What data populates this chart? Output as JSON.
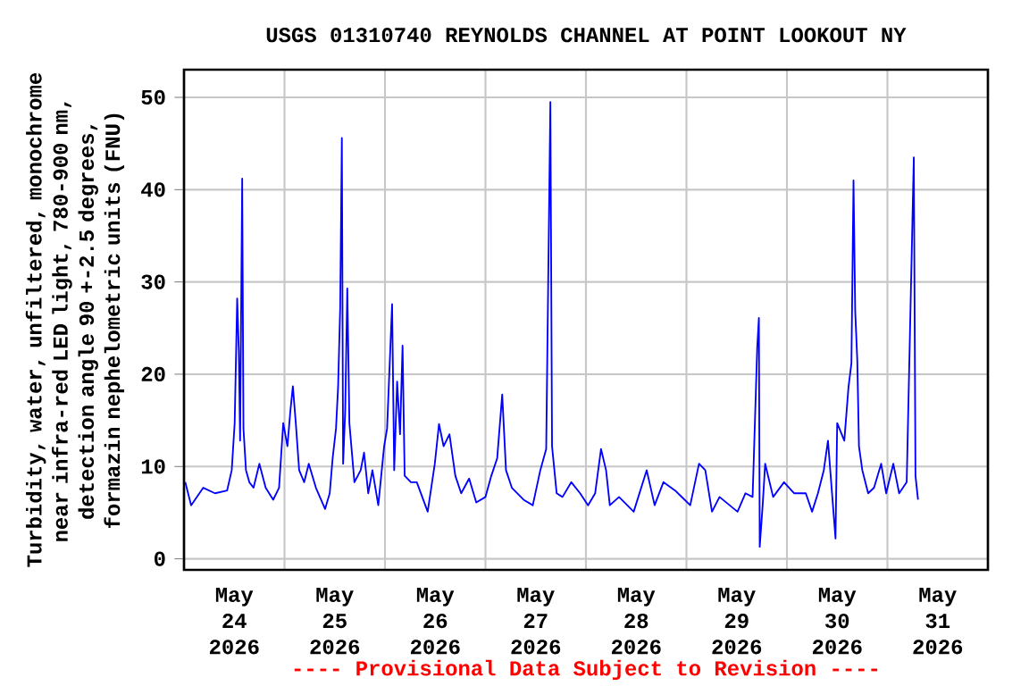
{
  "chart_data": {
    "type": "line",
    "title": "USGS 01310740 REYNOLDS CHANNEL AT POINT LOOKOUT NY",
    "ylabel": "Turbidity, water, unfiltered, monochrome near infra-red LED light, 780-900 nm, detection angle 90 +-2.5 degrees, formazin nephelometric units (FNU)",
    "annotations": [
      "---- Provisional Data Subject to Revision ----"
    ],
    "xlim": [
      "2026-05-24T00:00",
      "2026-06-01T00:00"
    ],
    "xticks": [
      {
        "value": "2026-05-24T12:00",
        "label": "May 24 2026"
      },
      {
        "value": "2026-05-25T00:00",
        "label": null
      },
      {
        "value": "2026-05-25T12:00",
        "label": "May 25 2026"
      },
      {
        "value": "2026-05-26T00:00",
        "label": null
      },
      {
        "value": "2026-05-26T12:00",
        "label": "May 26 2026"
      },
      {
        "value": "2026-05-27T00:00",
        "label": null
      },
      {
        "value": "2026-05-27T12:00",
        "label": "May 27 2026"
      },
      {
        "value": "2026-05-28T00:00",
        "label": null
      },
      {
        "value": "2026-05-28T12:00",
        "label": "May 28 2026"
      },
      {
        "value": "2026-05-29T00:00",
        "label": null
      },
      {
        "value": "2026-05-29T12:00",
        "label": "May 29 2026"
      },
      {
        "value": "2026-05-30T00:00",
        "label": null
      },
      {
        "value": "2026-05-30T12:00",
        "label": "May 30 2026"
      },
      {
        "value": "2026-05-31T00:00",
        "label": null
      },
      {
        "value": "2026-05-31T12:00",
        "label": "May 31 2026"
      }
    ],
    "ylim": [
      -1.2,
      53
    ],
    "yticks": [
      0,
      10,
      20,
      30,
      40,
      50
    ],
    "grid": true,
    "x": [
      "2026-05-24T00:18",
      "2026-05-24T01:42",
      "2026-05-24T04:36",
      "2026-05-24T07:24",
      "2026-05-24T10:18",
      "2026-05-24T11:24",
      "2026-05-24T12:06",
      "2026-05-24T12:42",
      "2026-05-24T13:06",
      "2026-05-24T13:24",
      "2026-05-24T13:54",
      "2026-05-24T14:12",
      "2026-05-24T14:48",
      "2026-05-24T15:36",
      "2026-05-24T16:36",
      "2026-05-24T18:00",
      "2026-05-24T19:30",
      "2026-05-24T21:18",
      "2026-05-24T22:42",
      "2026-05-24T23:42",
      "2026-05-25T00:42",
      "2026-05-25T01:24",
      "2026-05-25T02:00",
      "2026-05-25T02:42",
      "2026-05-25T03:30",
      "2026-05-25T04:42",
      "2026-05-25T05:48",
      "2026-05-25T07:30",
      "2026-05-25T09:42",
      "2026-05-25T10:48",
      "2026-05-25T11:30",
      "2026-05-25T12:18",
      "2026-05-25T12:48",
      "2026-05-25T13:18",
      "2026-05-25T13:42",
      "2026-05-25T14:00",
      "2026-05-25T14:30",
      "2026-05-25T15:00",
      "2026-05-25T15:30",
      "2026-05-25T16:42",
      "2026-05-25T18:12",
      "2026-05-25T19:00",
      "2026-05-25T20:00",
      "2026-05-25T21:00",
      "2026-05-25T22:24",
      "2026-05-25T23:48",
      "2026-05-26T00:30",
      "2026-05-26T01:42",
      "2026-05-26T02:12",
      "2026-05-26T02:54",
      "2026-05-26T03:36",
      "2026-05-26T04:12",
      "2026-05-26T04:42",
      "2026-05-26T06:12",
      "2026-05-26T07:36",
      "2026-05-26T10:12",
      "2026-05-26T11:54",
      "2026-05-26T12:54",
      "2026-05-26T14:00",
      "2026-05-26T15:24",
      "2026-05-26T16:48",
      "2026-05-26T18:12",
      "2026-05-26T20:06",
      "2026-05-26T21:48",
      "2026-05-27T00:00",
      "2026-05-27T01:24",
      "2026-05-27T02:48",
      "2026-05-27T04:00",
      "2026-05-27T04:54",
      "2026-05-27T06:18",
      "2026-05-27T09:06",
      "2026-05-27T11:18",
      "2026-05-27T13:06",
      "2026-05-27T14:30",
      "2026-05-27T15:30",
      "2026-05-27T15:54",
      "2026-05-27T17:00",
      "2026-05-27T18:24",
      "2026-05-27T20:30",
      "2026-05-27T22:36",
      "2026-05-28T00:30",
      "2026-05-28T02:12",
      "2026-05-28T03:36",
      "2026-05-28T04:48",
      "2026-05-28T05:42",
      "2026-05-28T07:54",
      "2026-05-28T11:24",
      "2026-05-28T14:30",
      "2026-05-28T16:24",
      "2026-05-28T18:30",
      "2026-05-28T21:18",
      "2026-05-29T00:54",
      "2026-05-29T03:00",
      "2026-05-29T04:30",
      "2026-05-29T06:06",
      "2026-05-29T07:54",
      "2026-05-29T12:12",
      "2026-05-29T14:06",
      "2026-05-29T15:48",
      "2026-05-29T16:54",
      "2026-05-29T17:18",
      "2026-05-29T17:30",
      "2026-05-29T18:12",
      "2026-05-29T18:48",
      "2026-05-29T20:42",
      "2026-05-29T23:18",
      "2026-05-30T01:42",
      "2026-05-30T04:30",
      "2026-05-30T06:00",
      "2026-05-30T07:24",
      "2026-05-30T08:48",
      "2026-05-30T09:48",
      "2026-05-30T11:36",
      "2026-05-30T12:00",
      "2026-05-30T13:42",
      "2026-05-30T14:42",
      "2026-05-30T15:24",
      "2026-05-30T15:54",
      "2026-05-30T16:18",
      "2026-05-30T16:48",
      "2026-05-30T17:12",
      "2026-05-30T18:00",
      "2026-05-30T19:24",
      "2026-05-30T20:48",
      "2026-05-30T22:30",
      "2026-05-30T23:42",
      "2026-05-31T01:24",
      "2026-05-31T02:48",
      "2026-05-31T04:36",
      "2026-05-31T06:18",
      "2026-05-31T06:42",
      "2026-05-31T07:18"
    ],
    "series": [
      {
        "color": "#0000ff",
        "values": [
          8.3,
          5.8,
          7.7,
          7.1,
          7.4,
          9.6,
          14.7,
          28.2,
          22.4,
          12.8,
          41.2,
          14.1,
          9.6,
          8.3,
          7.7,
          10.3,
          7.7,
          6.4,
          7.7,
          14.7,
          12.2,
          16,
          18.7,
          14.7,
          9.6,
          8.3,
          10.3,
          7.7,
          5.4,
          7.1,
          10.9,
          14.1,
          18.6,
          27.2,
          45.6,
          10.3,
          16,
          29.3,
          14.7,
          8.3,
          9.6,
          11.5,
          7.1,
          9.6,
          5.8,
          12.2,
          14.1,
          27.6,
          9.6,
          19.2,
          13.5,
          23.1,
          9,
          8.3,
          8.3,
          5.1,
          10.3,
          14.6,
          12.2,
          13.5,
          9,
          7.1,
          8.7,
          6.1,
          6.7,
          9,
          10.9,
          17.8,
          9.6,
          7.7,
          6.4,
          5.8,
          9.6,
          11.9,
          49.5,
          12.2,
          7.1,
          6.7,
          8.3,
          7.1,
          5.8,
          7.1,
          11.9,
          9.6,
          5.8,
          6.7,
          5.1,
          9.6,
          5.8,
          8.3,
          7.4,
          5.8,
          10.3,
          9.6,
          5.1,
          6.7,
          5.1,
          7.1,
          6.7,
          22.9,
          26.1,
          1.3,
          5.8,
          10.3,
          6.7,
          8.3,
          7.1,
          7.1,
          5.1,
          7.1,
          9.6,
          12.8,
          2.2,
          14.7,
          12.8,
          18.6,
          21.2,
          41,
          26.9,
          21.5,
          12.2,
          9.6,
          7.1,
          7.7,
          10.3,
          7.1,
          10.3,
          7.1,
          8.3,
          43.5,
          9,
          6.4
        ]
      }
    ]
  }
}
